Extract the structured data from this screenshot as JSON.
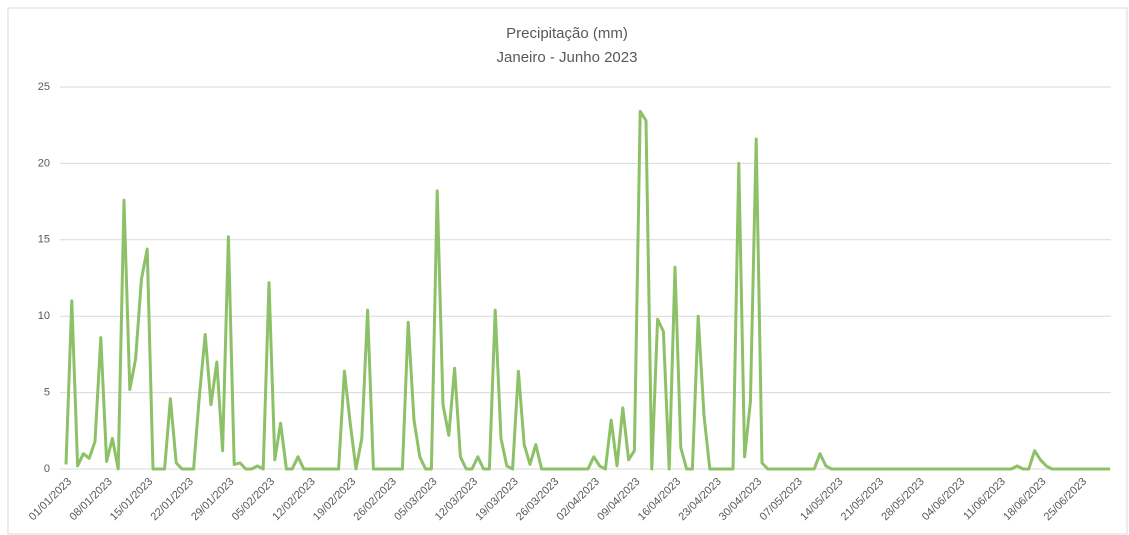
{
  "chart_data": {
    "type": "line",
    "title": "Precipitação (mm)",
    "subtitle": "Janeiro - Junho 2023",
    "categories": [
      "01/01/2023",
      null,
      null,
      null,
      null,
      null,
      null,
      "08/01/2023",
      null,
      null,
      null,
      null,
      null,
      null,
      "15/01/2023",
      null,
      null,
      null,
      null,
      null,
      null,
      "22/01/2023",
      null,
      null,
      null,
      null,
      null,
      null,
      "29/01/2023",
      null,
      null,
      null,
      null,
      null,
      null,
      "05/02/2023",
      null,
      null,
      null,
      null,
      null,
      null,
      "12/02/2023",
      null,
      null,
      null,
      null,
      null,
      null,
      "19/02/2023",
      null,
      null,
      null,
      null,
      null,
      null,
      "26/02/2023",
      null,
      null,
      null,
      null,
      null,
      null,
      "05/03/2023",
      null,
      null,
      null,
      null,
      null,
      null,
      "12/03/2023",
      null,
      null,
      null,
      null,
      null,
      null,
      "19/03/2023",
      null,
      null,
      null,
      null,
      null,
      null,
      "26/03/2023",
      null,
      null,
      null,
      null,
      null,
      null,
      "02/04/2023",
      null,
      null,
      null,
      null,
      null,
      null,
      "09/04/2023",
      null,
      null,
      null,
      null,
      null,
      null,
      "16/04/2023",
      null,
      null,
      null,
      null,
      null,
      null,
      "23/04/2023",
      null,
      null,
      null,
      null,
      null,
      null,
      "30/04/2023",
      null,
      null,
      null,
      null,
      null,
      null,
      "07/05/2023",
      null,
      null,
      null,
      null,
      null,
      null,
      "14/05/2023",
      null,
      null,
      null,
      null,
      null,
      null,
      "21/05/2023",
      null,
      null,
      null,
      null,
      null,
      null,
      "28/05/2023",
      null,
      null,
      null,
      null,
      null,
      null,
      "04/06/2023",
      null,
      null,
      null,
      null,
      null,
      null,
      "11/06/2023",
      null,
      null,
      null,
      null,
      null,
      null,
      "18/06/2023",
      null,
      null,
      null,
      null,
      null,
      null,
      "25/06/2023",
      null,
      null,
      null,
      null,
      null
    ],
    "values": [
      0.3,
      11,
      0.2,
      1.0,
      0.7,
      1.8,
      8.6,
      0.5,
      2.0,
      0,
      17.6,
      5.2,
      7.2,
      12.4,
      14.4,
      0,
      0,
      0,
      4.6,
      0.4,
      0,
      0,
      0,
      4.8,
      8.8,
      4.2,
      7.0,
      1.2,
      15.2,
      0.3,
      0.4,
      0,
      0,
      0.2,
      0,
      12.2,
      0.6,
      3.0,
      0,
      0,
      0.8,
      0,
      0,
      0,
      0,
      0,
      0,
      0,
      6.4,
      3.0,
      0,
      2.0,
      10.4,
      0,
      0,
      0,
      0,
      0,
      0,
      9.6,
      3.2,
      0.8,
      0,
      0,
      18.2,
      4.2,
      2.2,
      6.6,
      0.8,
      0,
      0,
      0.8,
      0,
      0,
      10.4,
      2.0,
      0.2,
      0,
      6.4,
      1.6,
      0.3,
      1.6,
      0,
      0,
      0,
      0,
      0,
      0,
      0,
      0,
      0,
      0.8,
      0.2,
      0,
      3.2,
      0.2,
      4.0,
      0.6,
      1.2,
      23.4,
      22.8,
      0,
      9.8,
      9.0,
      0,
      13.2,
      1.4,
      0,
      0,
      10.0,
      3.5,
      0,
      0,
      0,
      0,
      0,
      20.0,
      0.8,
      4.4,
      21.6,
      0.4,
      0,
      0,
      0,
      0,
      0,
      0,
      0,
      0,
      0,
      1.0,
      0.2,
      0,
      0,
      0,
      0,
      0,
      0,
      0,
      0,
      0,
      0,
      0,
      0,
      0,
      0,
      0,
      0,
      0,
      0,
      0,
      0,
      0,
      0,
      0,
      0,
      0,
      0,
      0,
      0,
      0,
      0,
      0,
      0,
      0.2,
      0,
      0,
      1.2,
      0.6,
      0.2,
      0,
      0,
      0,
      0,
      0,
      0,
      0,
      0,
      0,
      0,
      0
    ],
    "color": "#8cc168",
    "ylim": [
      0,
      25
    ],
    "yticks": [
      0,
      5,
      10,
      15,
      20,
      25
    ],
    "grid": true
  }
}
